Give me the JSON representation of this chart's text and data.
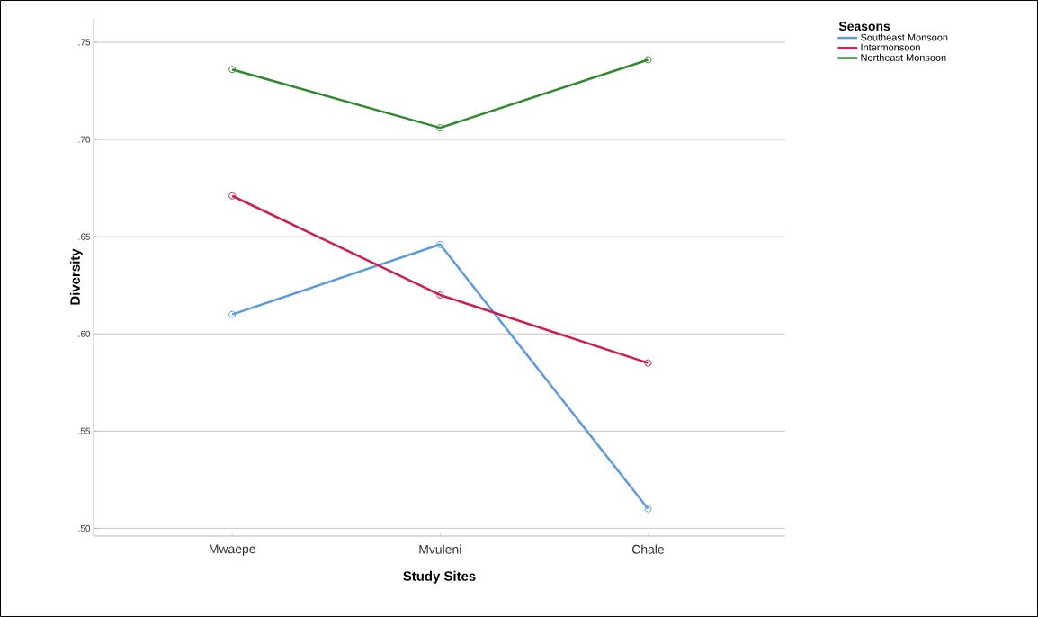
{
  "chart_data": {
    "type": "line",
    "xlabel": "Study Sites",
    "ylabel": "Diversity",
    "legend_title": "Seasons",
    "legend": "top right",
    "grid": "y",
    "marker": "circle",
    "line_style": "solid",
    "categories": [
      "Mwaepe",
      "Mvuleni",
      "Chale"
    ],
    "ylim": [
      0.496,
      0.7625
    ],
    "yticks": [
      {
        "value": 0.5,
        "label": ".50"
      },
      {
        "value": 0.55,
        "label": ".55"
      },
      {
        "value": 0.6,
        "label": ".60"
      },
      {
        "value": 0.65,
        "label": ".65"
      },
      {
        "value": 0.7,
        "label": ".70"
      },
      {
        "value": 0.75,
        "label": ".75"
      }
    ],
    "series": [
      {
        "name": "Southeast Monsoon",
        "color": "#5a9ae0",
        "values": [
          0.61,
          0.646,
          0.51
        ]
      },
      {
        "name": "Intermonsoon",
        "color": "#d01c4b",
        "values": [
          0.671,
          0.62,
          0.585
        ]
      },
      {
        "name": "Northeast Monsoon",
        "color": "#2f8a2f",
        "values": [
          0.736,
          0.706,
          0.741
        ]
      }
    ]
  }
}
